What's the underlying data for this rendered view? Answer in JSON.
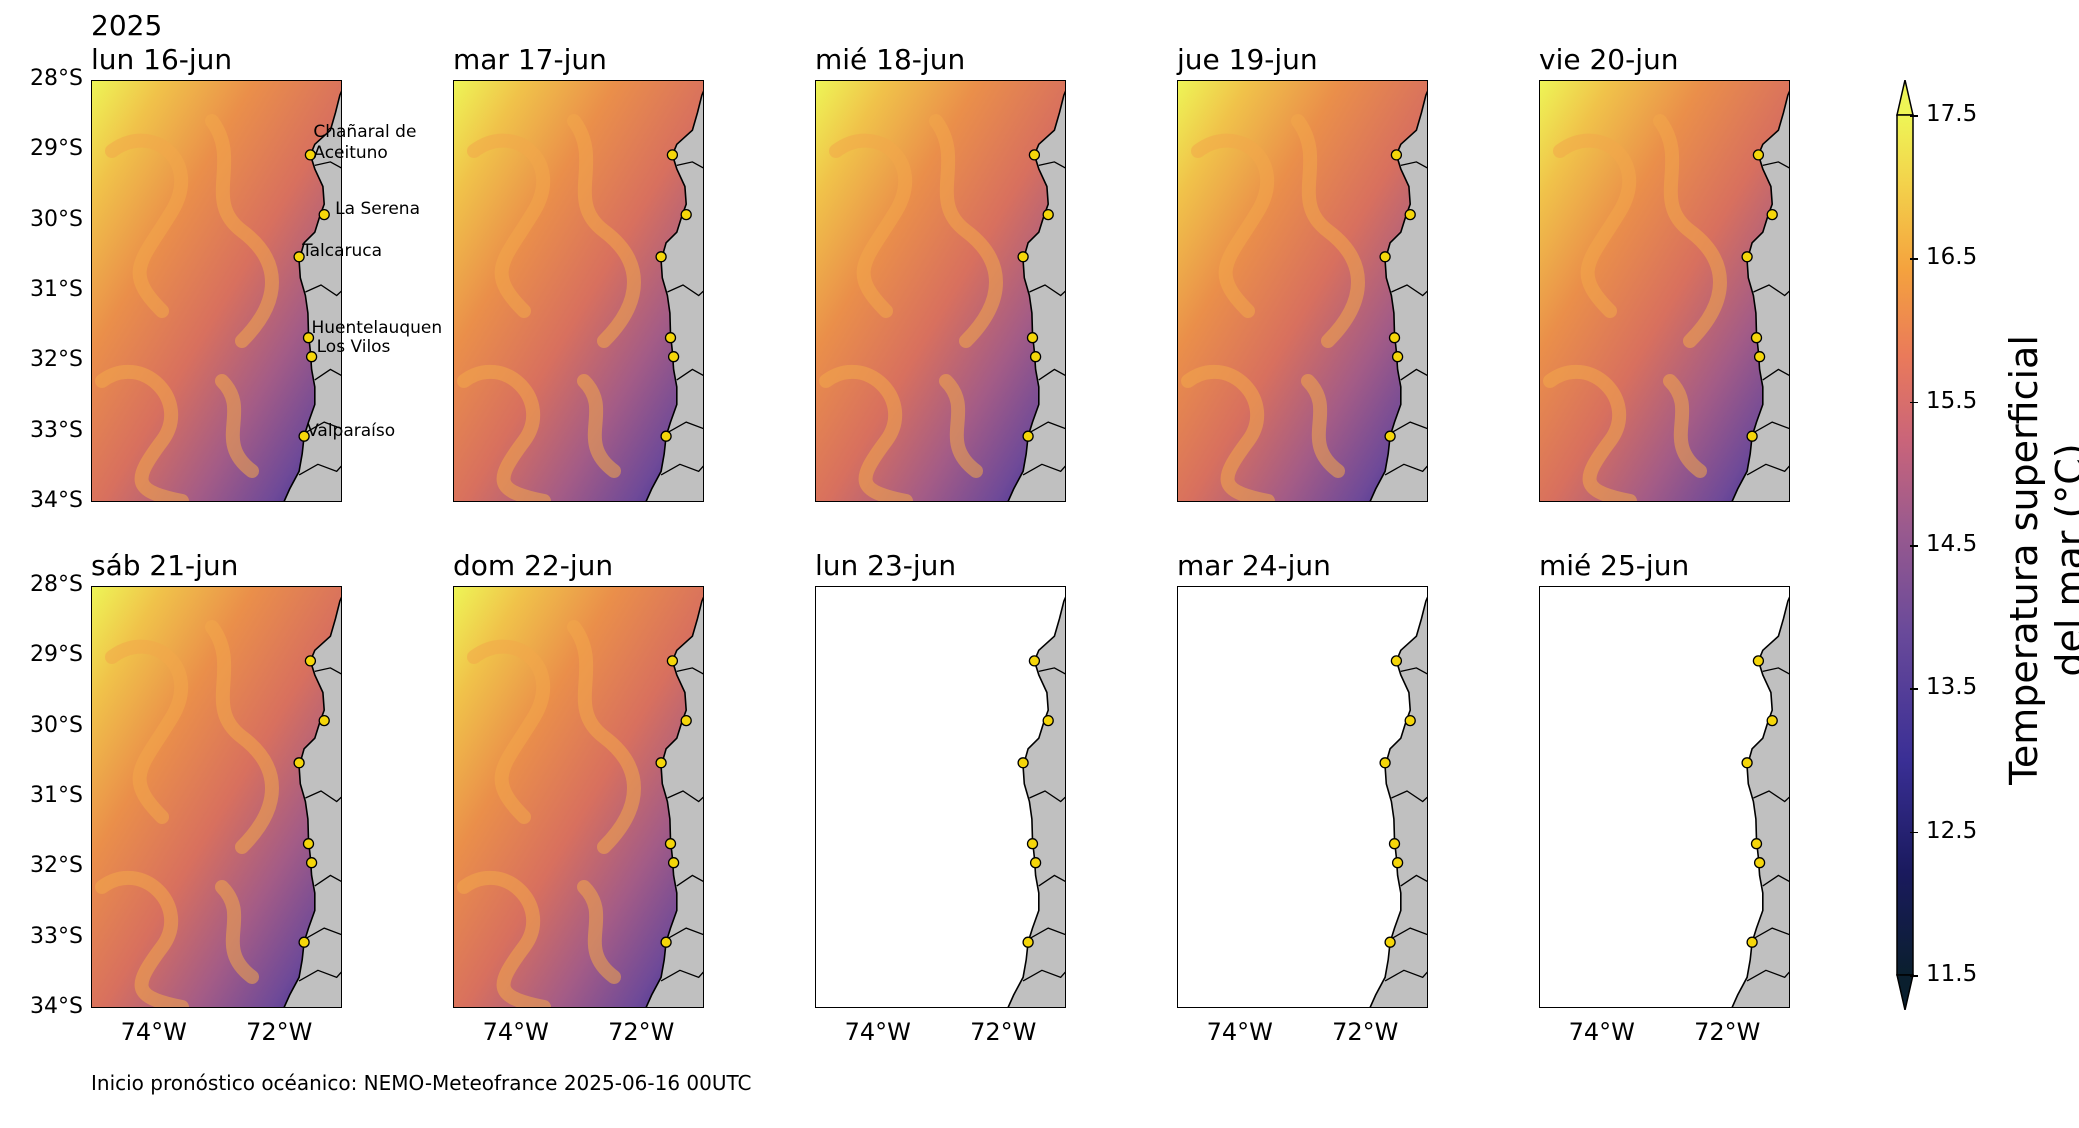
{
  "year": "2025",
  "panels": [
    {
      "title": "lun 16-jun",
      "has_data": true
    },
    {
      "title": "mar 17-jun",
      "has_data": true
    },
    {
      "title": "mié 18-jun",
      "has_data": true
    },
    {
      "title": "jue 19-jun",
      "has_data": true
    },
    {
      "title": "vie 20-jun",
      "has_data": true
    },
    {
      "title": "sáb 21-jun",
      "has_data": true
    },
    {
      "title": "dom 22-jun",
      "has_data": true
    },
    {
      "title": "lun 23-jun",
      "has_data": false
    },
    {
      "title": "mar 24-jun",
      "has_data": false
    },
    {
      "title": "mié 25-jun",
      "has_data": false
    }
  ],
  "lat_ticks": [
    "28°S",
    "29°S",
    "30°S",
    "31°S",
    "32°S",
    "33°S",
    "34°S"
  ],
  "lon_ticks": [
    "74°W",
    "72°W"
  ],
  "cities": [
    {
      "name": "Chañaral de Aceituno",
      "line1": "Chañaral de",
      "line2": "Aceituno"
    },
    {
      "name": "La Serena"
    },
    {
      "name": "Talcaruca"
    },
    {
      "name": "Huentelauquen"
    },
    {
      "name": "Los Vilos"
    },
    {
      "name": "Valparaíso"
    }
  ],
  "colorbar": {
    "title_line1": "Temperatura superficial",
    "title_line2": "del mar (°C)",
    "ticks": [
      "17.5",
      "16.5",
      "15.5",
      "14.5",
      "13.5",
      "12.5",
      "11.5"
    ],
    "min": 11.5,
    "max": 17.5,
    "extend": "both",
    "colormap_stops": [
      "#0a1f2e",
      "#1a1a5e",
      "#3a2f95",
      "#6a4a9a",
      "#9a5a8e",
      "#c9647a",
      "#ea7a5a",
      "#f4a23e",
      "#f3d24b",
      "#eef556"
    ]
  },
  "footer": "Inicio pronóstico océanico: NEMO-Meteofrance 2025-06-16 00UTC"
}
